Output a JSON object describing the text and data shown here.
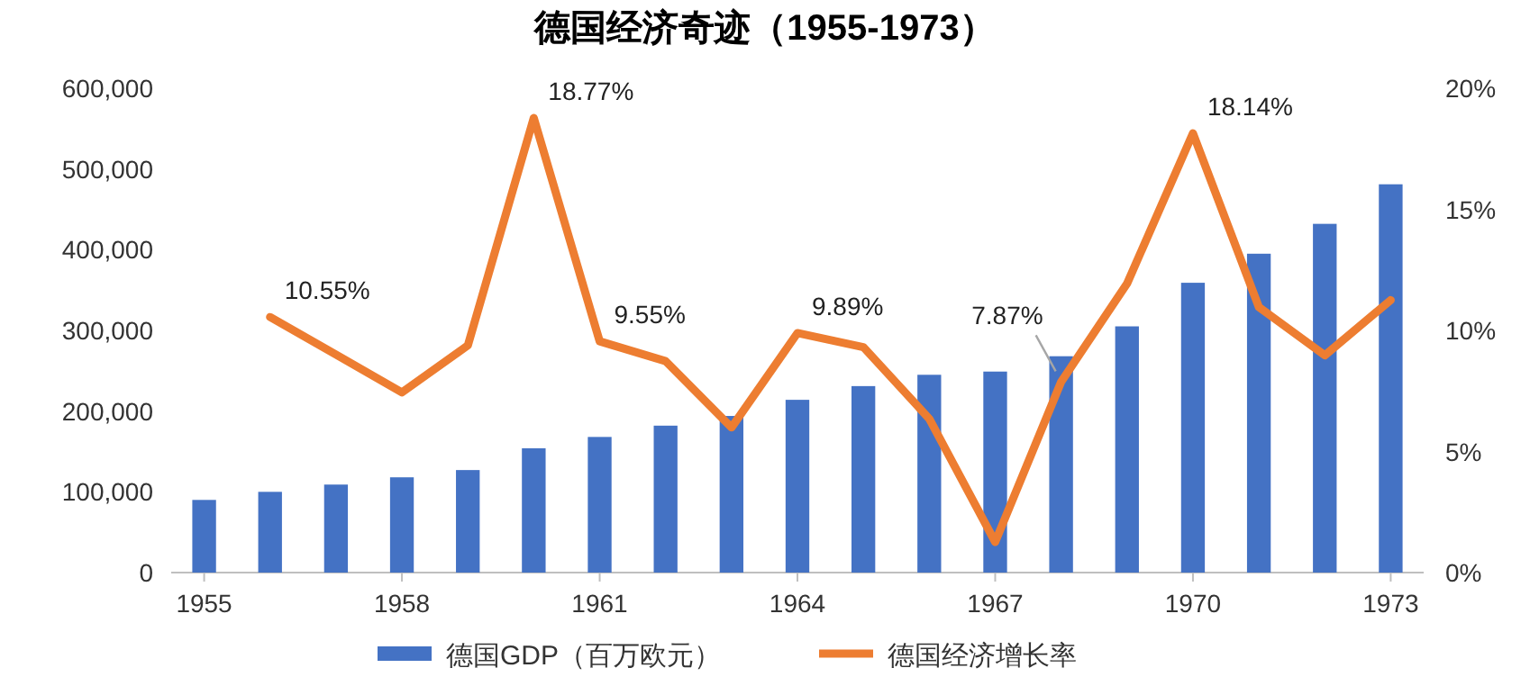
{
  "chart_data": {
    "type": "bar",
    "title": "德国经济奇迹（1955-1973）",
    "categories": [
      "1955",
      null,
      null,
      "1958",
      null,
      null,
      "1961",
      null,
      null,
      "1964",
      null,
      null,
      "1967",
      null,
      null,
      "1970",
      null,
      null,
      "1973"
    ],
    "series": [
      {
        "name": "德国GDP（百万欧元）",
        "color": "#4472c4",
        "values": [
          90000,
          100000,
          109000,
          118000,
          127000,
          154000,
          168000,
          182000,
          194000,
          214000,
          231000,
          245000,
          249000,
          268000,
          305000,
          359000,
          395000,
          432000,
          481000
        ]
      },
      {
        "name": "德国经济增长率",
        "type": "line",
        "axis": "y2",
        "color": "#ed7d31",
        "values": [
          null,
          10.55,
          9.0,
          7.44,
          9.38,
          18.77,
          9.55,
          8.73,
          5.99,
          9.89,
          9.31,
          6.35,
          1.26,
          7.87,
          11.93,
          18.14,
          10.96,
          8.97,
          11.25
        ],
        "value_labels": [
          null,
          "10.55%",
          null,
          null,
          null,
          "18.77%",
          "9.55%",
          null,
          null,
          "9.89%",
          null,
          null,
          null,
          "7.87%",
          null,
          "18.14%",
          null,
          null,
          null
        ]
      }
    ],
    "ylim": [
      0,
      600000
    ],
    "yticks": [
      {
        "value": 0,
        "label": "0"
      },
      {
        "value": 100000,
        "label": "100,000"
      },
      {
        "value": 200000,
        "label": "200,000"
      },
      {
        "value": 300000,
        "label": "300,000"
      },
      {
        "value": 400000,
        "label": "400,000"
      },
      {
        "value": 500000,
        "label": "500,000"
      },
      {
        "value": 600000,
        "label": "600,000"
      }
    ],
    "y2lim": [
      0,
      20
    ],
    "y2ticks": [
      {
        "value": 0,
        "label": "0%"
      },
      {
        "value": 5,
        "label": "5%"
      },
      {
        "value": 10,
        "label": "10%"
      },
      {
        "value": 15,
        "label": "15%"
      },
      {
        "value": 20,
        "label": "20%"
      }
    ],
    "grid": false,
    "legend": "bottom",
    "marker": "none",
    "line_style": "solid"
  }
}
